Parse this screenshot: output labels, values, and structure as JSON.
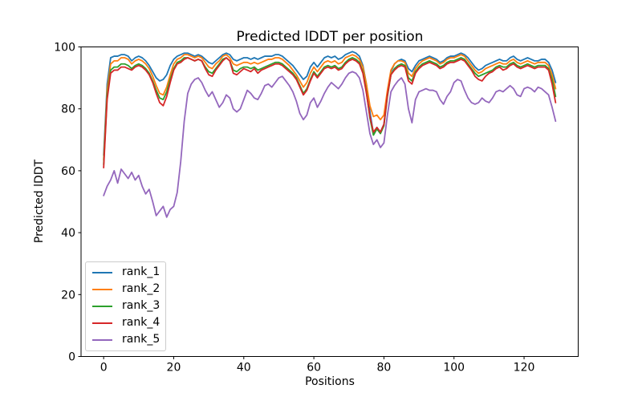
{
  "figure": {
    "background": "#ffffff",
    "frame_color": "#000000",
    "legend_border_color": "#cccccc",
    "text_color": "#000000"
  },
  "chart_data": {
    "type": "line",
    "title": "Predicted lDDT per position",
    "xlabel": "Positions",
    "ylabel": "Predicted lDDT",
    "xlim": [
      -6.45,
      135.45
    ],
    "ylim": [
      0,
      100
    ],
    "x_ticks": [
      0,
      20,
      40,
      60,
      80,
      100,
      120
    ],
    "y_ticks": [
      0,
      20,
      40,
      60,
      80,
      100
    ],
    "grid": false,
    "legend_position": "lower left",
    "x_start": 0,
    "x_step": 1,
    "series": [
      {
        "name": "rank_1",
        "color": "#1f77b4",
        "values": [
          65,
          88,
          96.5,
          97,
          97,
          97.5,
          97.5,
          97,
          95.5,
          96.5,
          97,
          96.5,
          95.5,
          94,
          92,
          90,
          89,
          89.5,
          91,
          94,
          96,
          97,
          97.5,
          98,
          98,
          97.5,
          97,
          97.5,
          97,
          96,
          95,
          94.5,
          95.5,
          96.5,
          97.5,
          98,
          97.5,
          96,
          95.5,
          96,
          96.5,
          96.5,
          96,
          96.5,
          96,
          96.5,
          97,
          97,
          97,
          97.5,
          97.5,
          97,
          96,
          95,
          94,
          92.5,
          91,
          89.5,
          90.5,
          93.5,
          95,
          93.5,
          95,
          96.5,
          97,
          96.5,
          97,
          96,
          96.5,
          97.5,
          98,
          98.5,
          98,
          97,
          94,
          88,
          79,
          72,
          74,
          72.5,
          75,
          85,
          92,
          94.5,
          95.5,
          96,
          95.5,
          93,
          92,
          94,
          95.5,
          96,
          96.5,
          97,
          96.5,
          96,
          95,
          95.5,
          96.5,
          97,
          97,
          97.5,
          98,
          97.5,
          96.5,
          95,
          93.5,
          92.5,
          93,
          94,
          94.5,
          95,
          95.5,
          96,
          95.5,
          95.5,
          96.5,
          97,
          96,
          95.5,
          96,
          96.5,
          96,
          95.5,
          95.5,
          96,
          96,
          95,
          92.5,
          88.5
        ]
      },
      {
        "name": "rank_2",
        "color": "#ff7f0e",
        "values": [
          63.5,
          86,
          94.5,
          95.5,
          95.5,
          96.5,
          96.5,
          96,
          94.5,
          95.5,
          96,
          95.5,
          94.5,
          93,
          90.5,
          87.5,
          85,
          84.5,
          87,
          91,
          94.5,
          96,
          96.5,
          97.5,
          97.5,
          97,
          96.5,
          97,
          96.5,
          95,
          93.5,
          93,
          94.5,
          95.5,
          97,
          97.5,
          96.5,
          94.5,
          94,
          94.5,
          95,
          95,
          94.5,
          95,
          94.5,
          95,
          95.5,
          96,
          96,
          96.5,
          96.5,
          96,
          95,
          94,
          92.5,
          91,
          89,
          87,
          88.5,
          91.5,
          93.5,
          92,
          93.5,
          95,
          95.5,
          95,
          95.5,
          94.5,
          95,
          96.5,
          97,
          97.5,
          97,
          96,
          93.5,
          88,
          81,
          77.5,
          78,
          76.5,
          78,
          86,
          92.5,
          94.5,
          95.5,
          95.5,
          95,
          91.5,
          90.5,
          93,
          94.5,
          95.5,
          96,
          96.5,
          96,
          95.5,
          94.5,
          95,
          96,
          96.5,
          96.5,
          97,
          97.5,
          97,
          95.5,
          94,
          92.5,
          91.5,
          92,
          93,
          93.5,
          94,
          94.5,
          95,
          94.5,
          94.5,
          95.5,
          96,
          95,
          94.5,
          95,
          95.5,
          95,
          94.5,
          95,
          95,
          95,
          94,
          91,
          86.5
        ]
      },
      {
        "name": "rank_3",
        "color": "#2ca02c",
        "values": [
          62,
          84,
          92.5,
          93.5,
          93.5,
          94.5,
          94.5,
          94,
          93,
          94,
          94.5,
          94,
          93,
          91.5,
          89,
          86,
          83.5,
          83,
          85.5,
          89.5,
          93,
          95,
          95.5,
          96.5,
          96.5,
          96,
          95.5,
          96,
          95.5,
          93.5,
          92,
          91.5,
          93,
          94.5,
          96,
          96.5,
          95.5,
          92.5,
          92,
          93,
          93.5,
          93.5,
          93,
          93.5,
          92.5,
          93,
          93.5,
          94,
          94.5,
          95,
          95,
          94.5,
          93.5,
          92.5,
          91.5,
          90,
          87.5,
          85,
          86.5,
          89.5,
          92,
          90.5,
          92,
          93.5,
          94,
          93.5,
          94,
          93,
          93.5,
          95,
          96,
          96.5,
          96,
          95,
          92,
          85.5,
          77,
          71.5,
          73.5,
          72,
          74.5,
          84,
          91,
          93,
          94,
          94.5,
          94,
          90,
          89,
          92,
          93.5,
          94.5,
          95,
          95.5,
          95,
          94.5,
          93.5,
          94,
          95,
          95.5,
          95.5,
          96,
          96.5,
          96,
          94.5,
          93,
          91.5,
          90.5,
          91,
          91.5,
          92,
          92.5,
          93.5,
          94,
          93.5,
          93.5,
          94.5,
          95,
          94,
          93.5,
          94,
          94.5,
          94,
          93.5,
          94,
          94,
          94,
          93,
          89.5,
          84
        ]
      },
      {
        "name": "rank_4",
        "color": "#d62728",
        "values": [
          61,
          83,
          91.5,
          92.5,
          92.5,
          93.5,
          93.5,
          93,
          92.5,
          93.5,
          94,
          93.5,
          92.5,
          91,
          88.5,
          85,
          82,
          81,
          84,
          88.5,
          92.5,
          94.5,
          95,
          96,
          96.5,
          96,
          95.5,
          96,
          95.5,
          93,
          91,
          90.5,
          92.5,
          94,
          95.5,
          96.5,
          95.5,
          91.5,
          91,
          92,
          93,
          92.5,
          92,
          93,
          91.5,
          92.5,
          93,
          93.5,
          94,
          94.5,
          94.5,
          94,
          93,
          92,
          91,
          89.5,
          87,
          84.5,
          86,
          89,
          91.5,
          90,
          91.5,
          93,
          93.5,
          93,
          93.5,
          92.5,
          93,
          94.5,
          95.5,
          96,
          95.5,
          94.5,
          91.5,
          85,
          77.5,
          72.5,
          74,
          72.5,
          75,
          84.5,
          91,
          92.5,
          93.5,
          94,
          93.5,
          89,
          88,
          91.5,
          93,
          94,
          94.5,
          95,
          94.5,
          94,
          93,
          93.5,
          94.5,
          95,
          95,
          95.5,
          96,
          95.5,
          94,
          92.5,
          90.5,
          89.5,
          89,
          90.5,
          91.5,
          92,
          93,
          93.5,
          92.5,
          93,
          94,
          94.5,
          93.5,
          93,
          93.5,
          94,
          93.5,
          93,
          93.5,
          93.5,
          93.5,
          92.5,
          88,
          82
        ]
      },
      {
        "name": "rank_5",
        "color": "#9467bd",
        "values": [
          52,
          55,
          57,
          60,
          56,
          60.5,
          59,
          57.5,
          59.5,
          57,
          58.5,
          55,
          52.5,
          54,
          50,
          45.5,
          47,
          48.5,
          45,
          47.5,
          48.5,
          53,
          63,
          76,
          85,
          88,
          89.5,
          90,
          88.5,
          86,
          84,
          85.5,
          83,
          80.5,
          82,
          84.5,
          83.5,
          80,
          79,
          80,
          83,
          86,
          85,
          83.5,
          83,
          85,
          87.5,
          88,
          87,
          88.5,
          90,
          90.5,
          89,
          87.5,
          85.5,
          82.5,
          78.5,
          76.5,
          78,
          82,
          83.5,
          80.5,
          82.5,
          85,
          87,
          88.5,
          87.5,
          86.5,
          88,
          90,
          91.5,
          92,
          91.5,
          90,
          86,
          79,
          72,
          68.5,
          70,
          67.5,
          69,
          78,
          85.5,
          87.5,
          89,
          90,
          88,
          80,
          75.5,
          83,
          85.5,
          86,
          86.5,
          86,
          86,
          85.5,
          83,
          81.5,
          84,
          85.5,
          88.5,
          89.5,
          89,
          86,
          83.5,
          82,
          81.5,
          82,
          83.5,
          82.5,
          82,
          83.5,
          85.5,
          86,
          85.5,
          86.5,
          87.5,
          86.5,
          84.5,
          84,
          86.5,
          87,
          86.5,
          85.5,
          87,
          86.5,
          85.5,
          84.5,
          80.5,
          76
        ]
      }
    ]
  }
}
